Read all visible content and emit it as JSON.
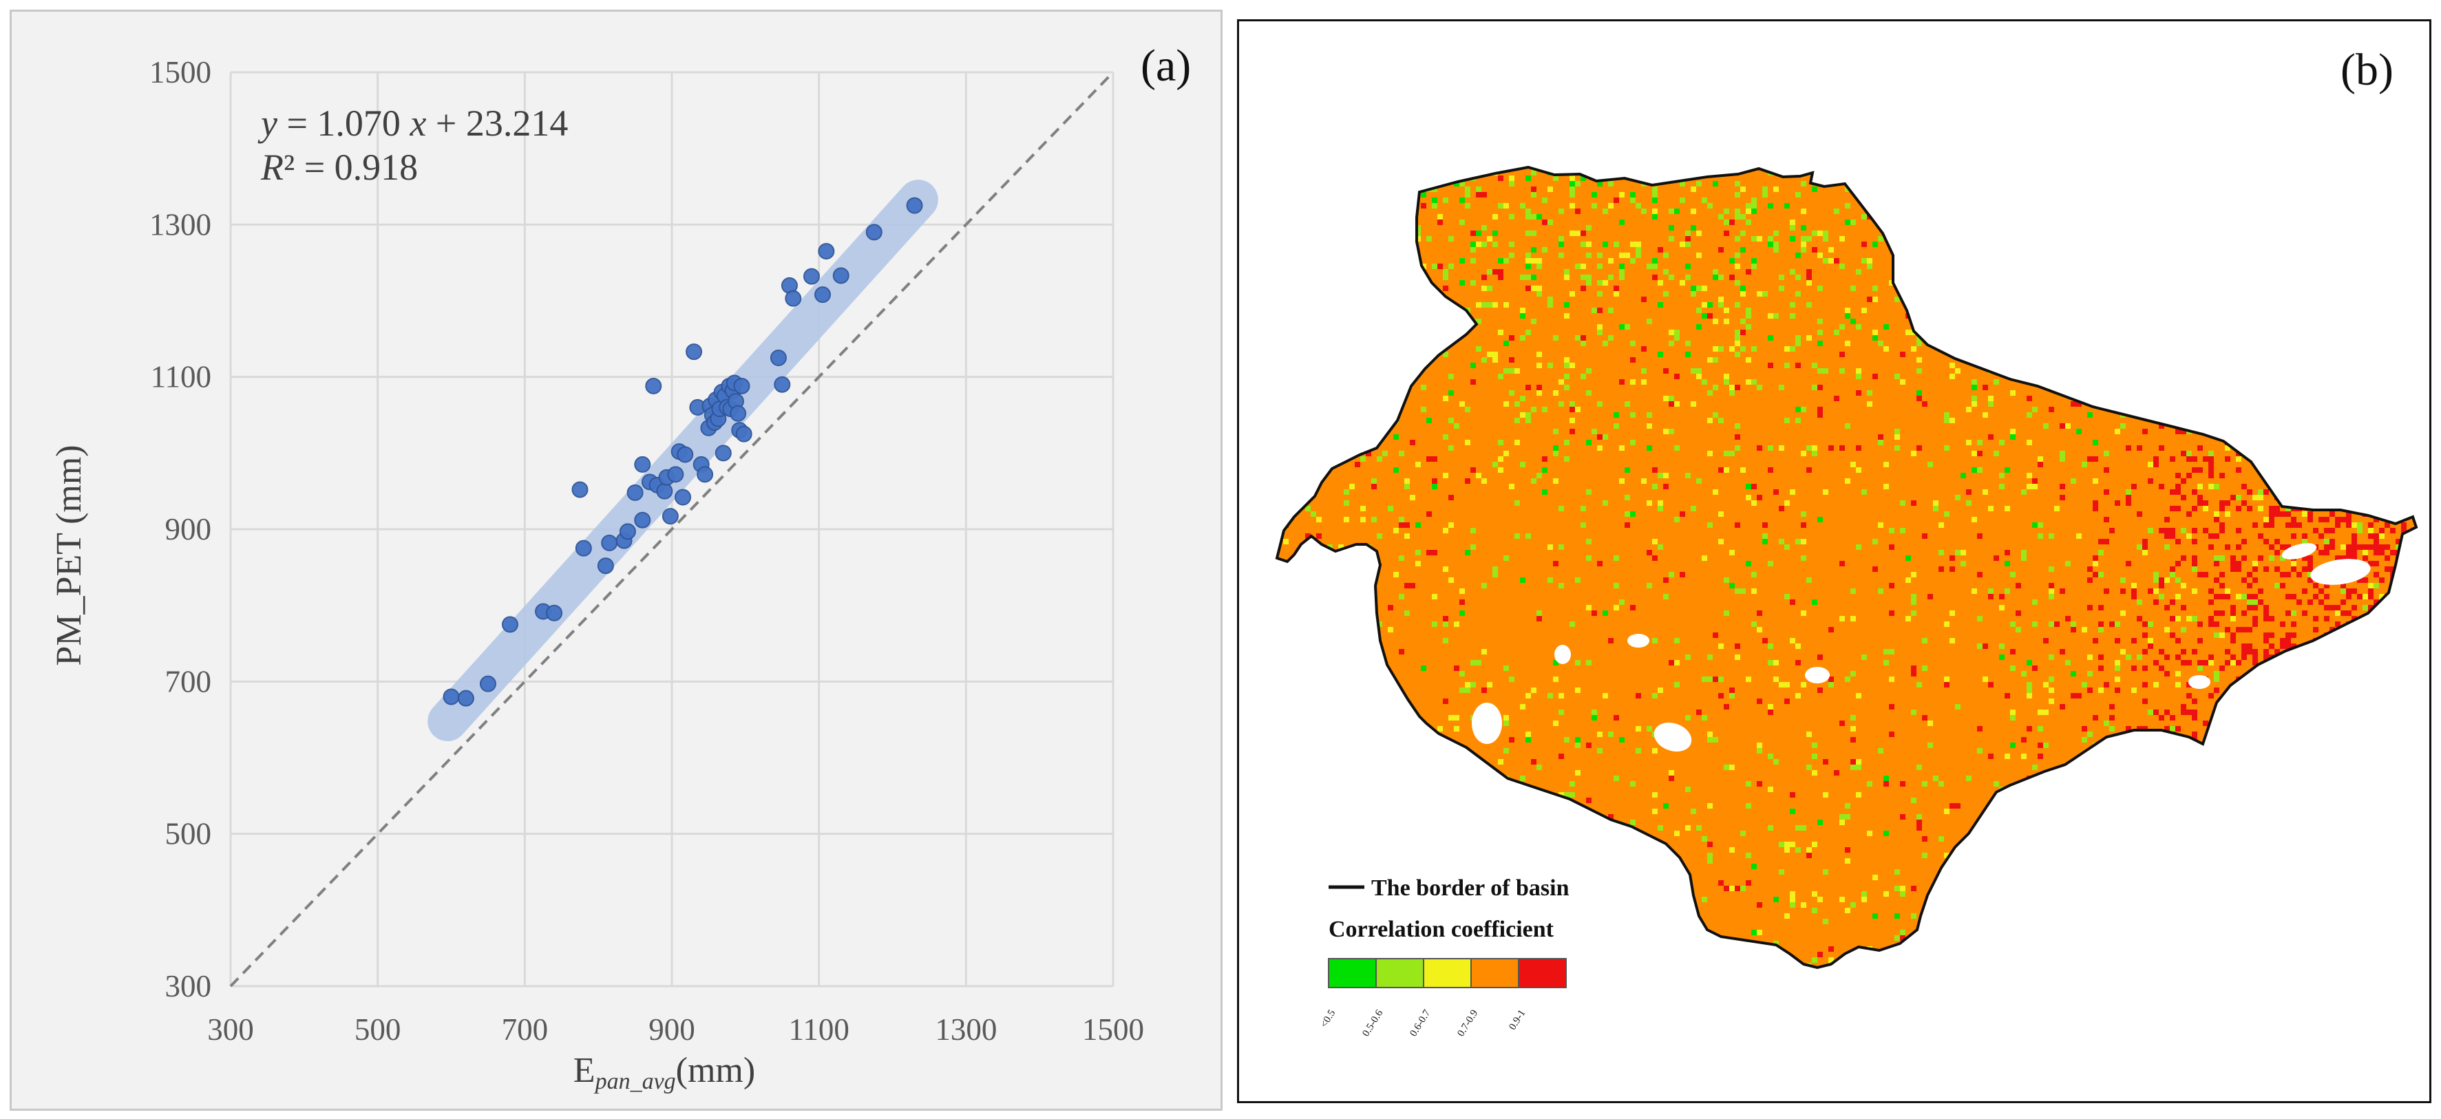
{
  "panel_a": {
    "label": "(a)",
    "equation_line1": {
      "y": "y",
      "eq": " = 1.070 ",
      "x": "x",
      "rest": " + 23.214"
    },
    "equation_line2": {
      "r": "R",
      "rest": "² = 0.918"
    },
    "colors": {
      "point": "#4472c4",
      "band": "#b4c7e7",
      "grid": "#d9d9d9",
      "ref": "#808080"
    }
  },
  "panel_b": {
    "label": "(b)",
    "legend_border": "The border of basin",
    "legend_title": "Correlation coefficient",
    "classes": [
      {
        "label": "<0.5",
        "color": "#00e000"
      },
      {
        "label": "0.5-0.6",
        "color": "#99e619"
      },
      {
        "label": "0.6-0.7",
        "color": "#f2f21a"
      },
      {
        "label": "0.7-0.9",
        "color": "#ff8c00"
      },
      {
        "label": "0.9-1",
        "color": "#ee1111"
      }
    ]
  },
  "chart_data": {
    "type": "scatter",
    "title": "",
    "xlabel": "E",
    "xlabel_sub": "pan_avg",
    "xlabel_unit": "(mm)",
    "ylabel": "PM_PET (mm)",
    "xlim": [
      300,
      1500
    ],
    "ylim": [
      300,
      1500
    ],
    "x_ticks": [
      "300",
      "500",
      "700",
      "900",
      "1100",
      "1300",
      "1500"
    ],
    "y_ticks": [
      "300",
      "500",
      "700",
      "900",
      "1100",
      "1300",
      "1500"
    ],
    "grid": true,
    "fit": {
      "slope": 1.07,
      "intercept": 23.214,
      "r2": 0.918
    },
    "reference_line": "1:1",
    "points": [
      [
        600,
        680
      ],
      [
        620,
        678
      ],
      [
        650,
        697
      ],
      [
        680,
        775
      ],
      [
        725,
        792
      ],
      [
        740,
        790
      ],
      [
        780,
        875
      ],
      [
        775,
        952
      ],
      [
        810,
        852
      ],
      [
        815,
        882
      ],
      [
        835,
        885
      ],
      [
        840,
        897
      ],
      [
        850,
        948
      ],
      [
        860,
        985
      ],
      [
        860,
        912
      ],
      [
        870,
        962
      ],
      [
        875,
        1088
      ],
      [
        880,
        958
      ],
      [
        890,
        950
      ],
      [
        893,
        968
      ],
      [
        898,
        917
      ],
      [
        905,
        972
      ],
      [
        910,
        1002
      ],
      [
        915,
        942
      ],
      [
        918,
        998
      ],
      [
        930,
        1133
      ],
      [
        935,
        1060
      ],
      [
        940,
        985
      ],
      [
        945,
        972
      ],
      [
        950,
        1033
      ],
      [
        952,
        1062
      ],
      [
        955,
        1050
      ],
      [
        958,
        1040
      ],
      [
        960,
        1070
      ],
      [
        963,
        1045
      ],
      [
        965,
        1058
      ],
      [
        968,
        1080
      ],
      [
        970,
        1000
      ],
      [
        972,
        1075
      ],
      [
        975,
        1060
      ],
      [
        978,
        1088
      ],
      [
        980,
        1058
      ],
      [
        983,
        1082
      ],
      [
        985,
        1092
      ],
      [
        987,
        1068
      ],
      [
        990,
        1052
      ],
      [
        992,
        1030
      ],
      [
        995,
        1088
      ],
      [
        998,
        1025
      ],
      [
        1045,
        1125
      ],
      [
        1050,
        1090
      ],
      [
        1060,
        1220
      ],
      [
        1065,
        1203
      ],
      [
        1090,
        1232
      ],
      [
        1105,
        1208
      ],
      [
        1110,
        1265
      ],
      [
        1130,
        1233
      ],
      [
        1175,
        1290
      ],
      [
        1230,
        1325
      ]
    ]
  }
}
